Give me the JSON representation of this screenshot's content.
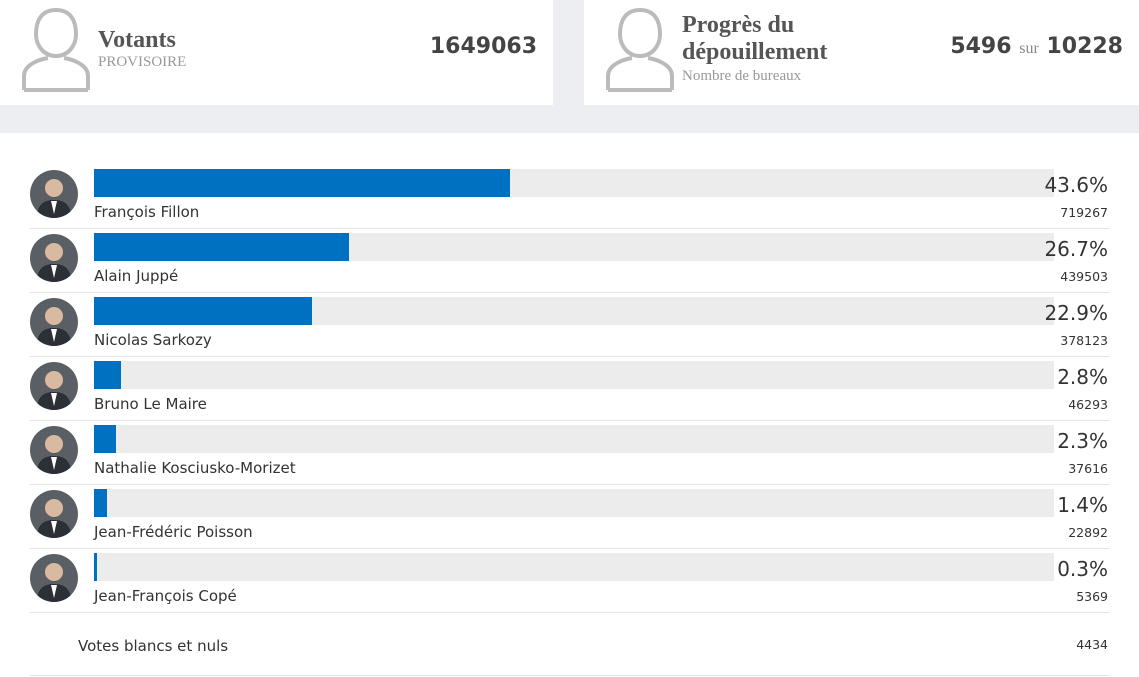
{
  "header": {
    "voters": {
      "title": "Votants",
      "subtitle": "PROVISOIRE",
      "value": 1649063
    },
    "progress": {
      "title": "Progrès du dépouillement",
      "subtitle": "Nombre de bureaux",
      "counted": 5496,
      "separator": "sur",
      "total": 10228
    }
  },
  "results": {
    "candidates": [
      {
        "name": "François Fillon",
        "percent": 43.6,
        "percent_label": "43.6%",
        "votes": 719267
      },
      {
        "name": "Alain Juppé",
        "percent": 26.7,
        "percent_label": "26.7%",
        "votes": 439503
      },
      {
        "name": "Nicolas Sarkozy",
        "percent": 22.9,
        "percent_label": "22.9%",
        "votes": 378123
      },
      {
        "name": "Bruno Le Maire",
        "percent": 2.8,
        "percent_label": "2.8%",
        "votes": 46293
      },
      {
        "name": "Nathalie Kosciusko-Morizet",
        "percent": 2.3,
        "percent_label": "2.3%",
        "votes": 37616
      },
      {
        "name": "Jean-Frédéric Poisson",
        "percent": 1.4,
        "percent_label": "1.4%",
        "votes": 22892
      },
      {
        "name": "Jean-François Copé",
        "percent": 0.3,
        "percent_label": "0.3%",
        "votes": 5369
      }
    ],
    "blank": {
      "label": "Votes blancs et nuls",
      "votes": 4434
    }
  }
}
